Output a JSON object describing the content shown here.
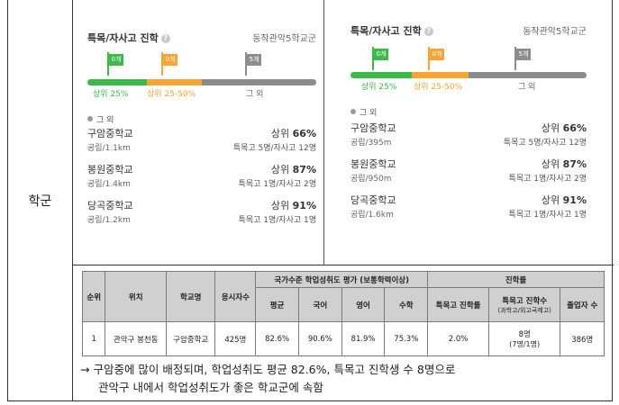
{
  "row_label": "학군",
  "panels": [
    {
      "title": "특목/자사고 진학",
      "school": "동작관악5학교군",
      "flags": [
        "0개",
        "0개",
        "5개"
      ],
      "bar_labels": [
        "상위 25%",
        "상위 25-50%",
        "그 외"
      ],
      "other_label": "그 외",
      "schools": [
        {
          "name": "구암중학교",
          "sub": "공립/1.1km",
          "rank_prefix": "상위",
          "rank": "66%",
          "detail": "특목고 5명/자사고 12명"
        },
        {
          "name": "봉원중학교",
          "sub": "공립/1.4km",
          "rank_prefix": "상위",
          "rank": "87%",
          "detail": "특목고 1명/자사고 2명"
        },
        {
          "name": "당곡중학교",
          "sub": "공립/1.2km",
          "rank_prefix": "상위",
          "rank": "91%",
          "detail": "특목고 1명/자사고 1명"
        }
      ]
    },
    {
      "title": "특목/자사고 진학",
      "school": "동작관악5학교군",
      "flags": [
        "0개",
        "0개",
        "5개"
      ],
      "bar_labels": [
        "상위 25%",
        "상위 25-50%",
        "그 외"
      ],
      "other_label": "그 외",
      "schools": [
        {
          "name": "구암중학교",
          "sub": "공립/395m",
          "rank_prefix": "상위",
          "rank": "66%",
          "detail": "특목고 5명/자사고 12명"
        },
        {
          "name": "봉원중학교",
          "sub": "공립/950m",
          "rank_prefix": "상위",
          "rank": "87%",
          "detail": "특목고 1명/자사고 2명"
        },
        {
          "name": "당곡중학교",
          "sub": "공립/1.6km",
          "rank_prefix": "상위",
          "rank": "91%",
          "detail": "특목고 1명/자사고 1명"
        }
      ]
    }
  ],
  "table": {
    "headers": {
      "rank": "순위",
      "location": "위치",
      "school": "학교명",
      "examinees": "응시자수",
      "national_group": "국가수준 학업성취도 평가 (보통학력이상)",
      "avg": "평균",
      "korean": "국어",
      "english": "영어",
      "math": "수학",
      "progress_group": "진학률",
      "special_rate": "특목고 진학률",
      "special_count": "특목고 진학수",
      "special_count_sub": "(과학고/외고국제고)",
      "graduates": "졸업자 수"
    },
    "row": {
      "rank": "1",
      "location": "관악구 봉천동",
      "school": "구암중학교",
      "examinees": "425명",
      "avg": "82.6%",
      "korean": "90.6%",
      "english": "81.9%",
      "math": "75.3%",
      "special_rate": "2.0%",
      "special_count": "8명",
      "special_count_sub": "(7명/1명)",
      "graduates": "386명"
    }
  },
  "note": {
    "line1": "→ 구암중에 많이 배정되며, 학업성취도 평균 82.6%, 특목고 진학생 수 8명으로",
    "line2": "관악구 내에서 학업성취도가 좋은 학교군에 속함"
  },
  "colors": {
    "green": "#3bba4a",
    "orange": "#f5a435",
    "gray": "#8d8d8d"
  }
}
